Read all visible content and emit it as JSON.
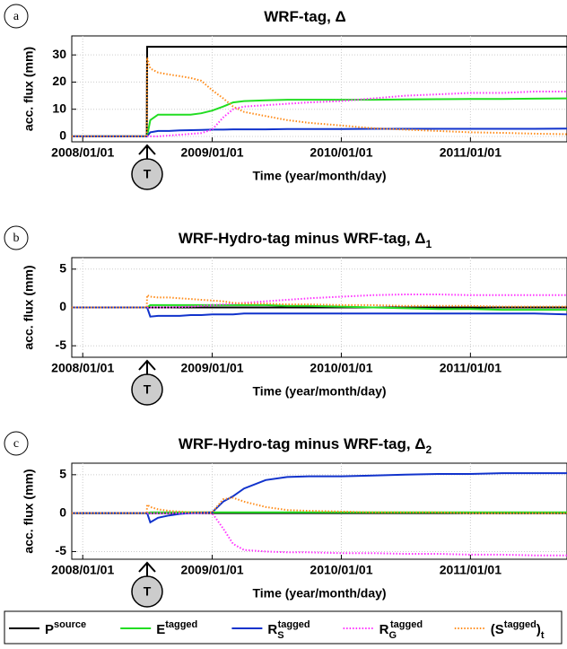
{
  "chart_data": [
    {
      "type": "line",
      "panel_label": "a",
      "title": "WRF-tag, Δ",
      "ylabel": "acc. flux (mm)",
      "xlabel": "Time (year/month/day)",
      "xlim": [
        "2007/12/01",
        "2011/10/01"
      ],
      "xticks": [
        "2008/01/01",
        "2009/01/01",
        "2010/01/01",
        "2011/01/01"
      ],
      "ylim": [
        -2,
        37
      ],
      "yticks": [
        0,
        10,
        20,
        30
      ],
      "grid": true,
      "tag_marker": {
        "label": "T",
        "x": "2008/07/01"
      },
      "x": [
        "2007/12/01",
        "2008/06/30",
        "2008/07/01",
        "2008/07/10",
        "2008/08/01",
        "2008/09/01",
        "2008/10/01",
        "2008/11/01",
        "2008/12/01",
        "2009/01/01",
        "2009/02/01",
        "2009/03/01",
        "2009/04/01",
        "2009/06/01",
        "2009/08/01",
        "2009/10/01",
        "2010/01/01",
        "2010/04/01",
        "2010/07/01",
        "2010/10/01",
        "2011/01/01",
        "2011/04/01",
        "2011/07/01",
        "2011/10/01"
      ],
      "series": [
        {
          "color": "#000000",
          "dash": "solid",
          "values": [
            0,
            0,
            33,
            33,
            33,
            33,
            33,
            33,
            33,
            33,
            33,
            33,
            33,
            33,
            33,
            33,
            33,
            33,
            33,
            33,
            33,
            33,
            33,
            33
          ]
        },
        {
          "color": "#22dd22",
          "dash": "solid",
          "values": [
            0,
            0,
            0,
            6,
            8,
            8,
            8,
            8,
            8.5,
            9.5,
            11,
            12.5,
            13,
            13.3,
            13.5,
            13.5,
            13.5,
            13.5,
            13.6,
            13.7,
            13.8,
            13.8,
            13.9,
            14
          ]
        },
        {
          "color": "#1133cc",
          "dash": "solid",
          "values": [
            0,
            0,
            0,
            1.5,
            2,
            2,
            2.2,
            2.3,
            2.4,
            2.5,
            2.5,
            2.6,
            2.6,
            2.6,
            2.7,
            2.7,
            2.7,
            2.8,
            2.8,
            2.8,
            2.8,
            2.8,
            2.8,
            2.9
          ]
        },
        {
          "color": "#ff33ff",
          "dash": "dotted",
          "values": [
            0,
            0,
            0,
            0,
            0,
            0.3,
            0.6,
            0.9,
            1.2,
            2.5,
            7,
            10,
            11,
            11.5,
            12,
            12.5,
            13,
            14,
            15,
            15.5,
            16,
            16,
            16.5,
            16.5
          ]
        },
        {
          "color": "#ff8c1a",
          "dash": "dotted",
          "values": [
            0,
            0,
            29,
            25,
            23.5,
            22.8,
            22.2,
            21.5,
            20.5,
            17,
            14,
            11,
            9,
            7.5,
            6,
            5,
            4,
            3,
            2.5,
            2,
            1.5,
            1.3,
            1,
            0.8
          ]
        }
      ]
    },
    {
      "type": "line",
      "panel_label": "b",
      "title": "WRF-Hydro-tag minus WRF-tag, Δ",
      "title_sub": "1",
      "ylabel": "acc. flux (mm)",
      "xlabel": "Time (year/month/day)",
      "xlim": [
        "2007/12/01",
        "2011/10/01"
      ],
      "xticks": [
        "2008/01/01",
        "2009/01/01",
        "2010/01/01",
        "2011/01/01"
      ],
      "ylim": [
        -6.5,
        6.5
      ],
      "yticks": [
        -5,
        0,
        5
      ],
      "grid": true,
      "tag_marker": {
        "label": "T",
        "x": "2008/07/01"
      },
      "x": [
        "2007/12/01",
        "2008/06/30",
        "2008/07/01",
        "2008/07/10",
        "2008/08/01",
        "2008/09/01",
        "2008/10/01",
        "2008/11/01",
        "2008/12/01",
        "2009/01/01",
        "2009/02/01",
        "2009/03/01",
        "2009/04/01",
        "2009/06/01",
        "2009/08/01",
        "2009/10/01",
        "2010/01/01",
        "2010/04/01",
        "2010/07/01",
        "2010/10/01",
        "2011/01/01",
        "2011/04/01",
        "2011/07/01",
        "2011/10/01"
      ],
      "series": [
        {
          "color": "#000000",
          "dash": "solid",
          "values": [
            0,
            0,
            0,
            0,
            0,
            0,
            0,
            0,
            0,
            0,
            0,
            0,
            0,
            0,
            0,
            0,
            0,
            0,
            0,
            0,
            0,
            0,
            0,
            0
          ]
        },
        {
          "color": "#22dd22",
          "dash": "solid",
          "values": [
            0,
            0,
            0,
            0.3,
            0.3,
            0.3,
            0.3,
            0.3,
            0.3,
            0.3,
            0.3,
            0.3,
            0.3,
            0.3,
            0.2,
            0.2,
            0.1,
            0,
            -0.1,
            -0.2,
            -0.2,
            -0.3,
            -0.3,
            -0.3
          ]
        },
        {
          "color": "#1133cc",
          "dash": "solid",
          "values": [
            0,
            0,
            0,
            -1.2,
            -1.1,
            -1.1,
            -1.1,
            -1,
            -1,
            -0.9,
            -0.9,
            -0.9,
            -0.8,
            -0.8,
            -0.8,
            -0.8,
            -0.8,
            -0.8,
            -0.8,
            -0.8,
            -0.8,
            -0.8,
            -0.8,
            -0.9
          ]
        },
        {
          "color": "#ff33ff",
          "dash": "dotted",
          "values": [
            0,
            0,
            0,
            0,
            0,
            0,
            0.05,
            0.1,
            0.2,
            0.3,
            0.4,
            0.5,
            0.6,
            0.8,
            1,
            1.2,
            1.4,
            1.6,
            1.7,
            1.7,
            1.6,
            1.6,
            1.6,
            1.6
          ]
        },
        {
          "color": "#ff8c1a",
          "dash": "dotted",
          "values": [
            0,
            0,
            1.6,
            1.4,
            1.3,
            1.3,
            1.2,
            1.1,
            1,
            0.9,
            0.8,
            0.6,
            0.5,
            0.5,
            0.4,
            0.4,
            0.3,
            0.3,
            0.2,
            0.2,
            0.2,
            0.1,
            0.1,
            0.1
          ]
        }
      ]
    },
    {
      "type": "line",
      "panel_label": "c",
      "title": "WRF-Hydro-tag minus WRF-tag, Δ",
      "title_sub": "2",
      "ylabel": "acc. flux (mm)",
      "xlabel": "Time (year/month/day)",
      "xlim": [
        "2007/12/01",
        "2011/10/01"
      ],
      "xticks": [
        "2008/01/01",
        "2009/01/01",
        "2010/01/01",
        "2011/01/01"
      ],
      "ylim": [
        -6,
        6.5
      ],
      "yticks": [
        -5,
        0,
        5
      ],
      "grid": true,
      "tag_marker": {
        "label": "T",
        "x": "2008/07/01"
      },
      "x": [
        "2007/12/01",
        "2008/06/30",
        "2008/07/01",
        "2008/07/10",
        "2008/08/01",
        "2008/09/01",
        "2008/10/01",
        "2008/11/01",
        "2008/12/01",
        "2009/01/01",
        "2009/02/01",
        "2009/03/01",
        "2009/04/01",
        "2009/06/01",
        "2009/08/01",
        "2009/10/01",
        "2010/01/01",
        "2010/04/01",
        "2010/07/01",
        "2010/10/01",
        "2011/01/01",
        "2011/04/01",
        "2011/07/01",
        "2011/10/01"
      ],
      "series": [
        {
          "color": "#000000",
          "dash": "solid",
          "values": [
            0,
            0,
            0,
            0,
            0,
            0,
            0,
            0,
            0,
            0,
            0,
            0,
            0,
            0,
            0,
            0,
            0,
            0,
            0,
            0,
            0,
            0,
            0,
            0
          ]
        },
        {
          "color": "#22dd22",
          "dash": "solid",
          "values": [
            0,
            0,
            0,
            0.1,
            0.1,
            0.1,
            0.1,
            0.1,
            0.1,
            0.1,
            0.1,
            0.1,
            0.1,
            0.1,
            0.1,
            0.1,
            0.1,
            0.1,
            0.1,
            0.1,
            0.1,
            0.1,
            0.1,
            0.1
          ]
        },
        {
          "color": "#1133cc",
          "dash": "solid",
          "values": [
            0,
            0,
            0,
            -1.2,
            -0.6,
            -0.3,
            -0.1,
            0,
            0.05,
            0.1,
            1.5,
            2.2,
            3.2,
            4.3,
            4.7,
            4.8,
            4.8,
            4.9,
            5,
            5.1,
            5.1,
            5.2,
            5.2,
            5.2
          ]
        },
        {
          "color": "#ff33ff",
          "dash": "dotted",
          "values": [
            0,
            0,
            0,
            0,
            0,
            0,
            0,
            0,
            0,
            0,
            -2,
            -4,
            -4.8,
            -5,
            -5.1,
            -5.1,
            -5.2,
            -5.2,
            -5.3,
            -5.3,
            -5.4,
            -5.4,
            -5.5,
            -5.5
          ]
        },
        {
          "color": "#ff8c1a",
          "dash": "dotted",
          "values": [
            0,
            0,
            1.1,
            0.8,
            0.5,
            0.3,
            0.2,
            0.1,
            0.1,
            0.1,
            1.8,
            2,
            1.5,
            0.8,
            0.4,
            0.3,
            0.2,
            0.1,
            0.1,
            0.1,
            0,
            0,
            0,
            0
          ]
        }
      ]
    }
  ],
  "legend": {
    "entries": [
      {
        "color": "#000000",
        "dash": "solid",
        "parts": [
          {
            "text": "P"
          },
          {
            "text": "source",
            "style": "sup"
          }
        ]
      },
      {
        "color": "#22dd22",
        "dash": "solid",
        "parts": [
          {
            "text": "E"
          },
          {
            "text": "tagged",
            "style": "sup"
          }
        ]
      },
      {
        "color": "#1133cc",
        "dash": "solid",
        "parts": [
          {
            "text": "R"
          },
          {
            "text": "S",
            "style": "sub"
          },
          {
            "text": "tagged",
            "style": "sup"
          }
        ]
      },
      {
        "color": "#ff33ff",
        "dash": "dotted",
        "parts": [
          {
            "text": "R"
          },
          {
            "text": "G",
            "style": "sub"
          },
          {
            "text": "tagged",
            "style": "sup"
          }
        ]
      },
      {
        "color": "#ff8c1a",
        "dash": "dotted",
        "parts": [
          {
            "text": "(S"
          },
          {
            "text": "tagged",
            "style": "sup"
          },
          {
            "text": ")"
          },
          {
            "text": "t",
            "style": "sub"
          }
        ]
      }
    ]
  }
}
